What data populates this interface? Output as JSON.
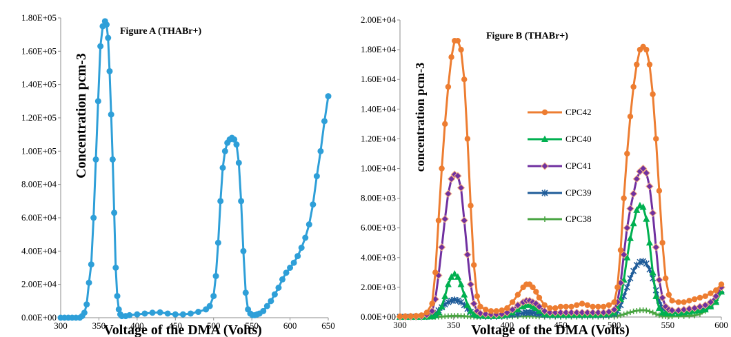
{
  "chart_data": [
    {
      "type": "line",
      "title": "Figure A (THABr+)",
      "xlabel": "Voltage of the DMA (Volts)",
      "ylabel": "Concentration pcm-3",
      "xlim": [
        300,
        650
      ],
      "ylim": [
        0,
        180000
      ],
      "x_ticks": [
        "300",
        "350",
        "400",
        "450",
        "500",
        "550",
        "600",
        "650"
      ],
      "y_ticks": [
        "0.00E+00",
        "2.00E+04",
        "4.00E+04",
        "6.00E+04",
        "8.00E+04",
        "1.00E+05",
        "1.20E+05",
        "1.40E+05",
        "1.60E+05",
        "1.80E+05"
      ],
      "grid": false,
      "legend": "none",
      "colors": {
        "series": "#2e9fd8"
      },
      "series": [
        {
          "x": [
            300,
            305,
            310,
            315,
            320,
            325,
            328,
            331,
            334,
            337,
            340,
            343,
            346,
            349,
            352,
            355,
            358,
            360,
            362,
            364,
            366,
            368,
            370,
            372,
            374,
            376,
            378,
            380,
            385,
            390,
            400,
            410,
            420,
            430,
            440,
            450,
            460,
            470,
            480,
            490,
            495,
            500,
            503,
            506,
            509,
            512,
            515,
            518,
            521,
            524,
            527,
            530,
            533,
            536,
            539,
            542,
            545,
            548,
            551,
            554,
            557,
            560,
            565,
            570,
            575,
            580,
            585,
            590,
            595,
            600,
            605,
            610,
            615,
            620,
            625,
            630,
            635,
            640,
            645,
            650
          ],
          "y": [
            0,
            0,
            0,
            0,
            0,
            0,
            1000,
            3000,
            8000,
            21000,
            32000,
            60000,
            95000,
            130000,
            163000,
            175000,
            178000,
            176000,
            168000,
            148000,
            122000,
            95000,
            63000,
            30000,
            13000,
            5000,
            2000,
            1000,
            1000,
            1500,
            2000,
            2500,
            3000,
            3200,
            2500,
            2000,
            2000,
            2500,
            3500,
            5000,
            7000,
            13000,
            25000,
            45000,
            70000,
            90000,
            100000,
            105000,
            107000,
            108000,
            107000,
            104000,
            93000,
            70000,
            40000,
            15000,
            5000,
            2500,
            1500,
            1500,
            2000,
            2500,
            4000,
            7000,
            10000,
            14000,
            18000,
            23000,
            27000,
            30000,
            33000,
            37000,
            42000,
            48000,
            56000,
            68000,
            85000,
            100000,
            118000,
            133000
          ]
        }
      ]
    },
    {
      "type": "line",
      "title": "Figure B  (THABr+)",
      "xlabel": "Voltage of the DMA (Volts)",
      "ylabel": "concentration pcm-3",
      "xlim": [
        300,
        600
      ],
      "ylim": [
        0,
        20000
      ],
      "x_ticks": [
        "300",
        "350",
        "400",
        "450",
        "500",
        "550",
        "600"
      ],
      "y_ticks": [
        "0.00E+00",
        "2.00E+03",
        "4.00E+03",
        "6.00E+03",
        "8.00E+03",
        "1.00E+04",
        "1.20E+04",
        "1.40E+04",
        "1.60E+04",
        "1.80E+04",
        "2.00E+04"
      ],
      "grid": false,
      "legend": "center",
      "x": [
        300,
        305,
        310,
        315,
        320,
        325,
        330,
        333,
        336,
        339,
        342,
        345,
        348,
        351,
        354,
        357,
        360,
        363,
        366,
        369,
        372,
        375,
        380,
        385,
        390,
        395,
        400,
        405,
        410,
        415,
        418,
        421,
        424,
        427,
        430,
        435,
        440,
        445,
        450,
        455,
        460,
        465,
        470,
        475,
        480,
        485,
        490,
        495,
        500,
        503,
        506,
        509,
        512,
        515,
        518,
        521,
        524,
        527,
        530,
        533,
        536,
        539,
        542,
        545,
        548,
        551,
        554,
        560,
        565,
        570,
        575,
        580,
        585,
        590,
        595,
        600
      ],
      "series": [
        {
          "name": "CPC42",
          "color": "#ed7d31",
          "marker": "circle",
          "values": [
            50,
            50,
            60,
            80,
            120,
            300,
            900,
            3000,
            6500,
            10000,
            13000,
            15500,
            17500,
            18600,
            18600,
            18000,
            16000,
            12000,
            7500,
            3500,
            1400,
            700,
            500,
            400,
            400,
            450,
            600,
            1000,
            1500,
            2000,
            2200,
            2200,
            2000,
            1700,
            1300,
            800,
            600,
            600,
            700,
            700,
            700,
            800,
            900,
            800,
            700,
            700,
            700,
            800,
            1000,
            2000,
            4500,
            8000,
            11000,
            13500,
            15500,
            17000,
            18000,
            18200,
            18000,
            17000,
            15000,
            12000,
            8500,
            5000,
            2600,
            1500,
            1100,
            1000,
            1000,
            1100,
            1200,
            1300,
            1400,
            1600,
            1800,
            2200
          ]
        },
        {
          "name": "CPC40",
          "color": "#00b050",
          "marker": "triangle",
          "values": [
            0,
            0,
            0,
            0,
            0,
            10,
            30,
            100,
            300,
            700,
            1400,
            2200,
            2700,
            2900,
            2700,
            2200,
            1500,
            800,
            400,
            200,
            100,
            80,
            60,
            60,
            60,
            80,
            150,
            300,
            500,
            700,
            800,
            800,
            700,
            600,
            400,
            200,
            150,
            150,
            150,
            150,
            150,
            150,
            150,
            150,
            150,
            150,
            200,
            200,
            300,
            600,
            1200,
            2500,
            4000,
            5300,
            6300,
            7200,
            7500,
            7400,
            6600,
            5000,
            3000,
            1400,
            600,
            300,
            250,
            250,
            250,
            250,
            300,
            350,
            400,
            450,
            500,
            700,
            1000,
            1700
          ]
        },
        {
          "name": "CPC41",
          "color": "#7030a0",
          "marker": "diamond",
          "values": [
            20,
            20,
            30,
            40,
            60,
            150,
            400,
            1200,
            2800,
            4700,
            6600,
            8300,
            9300,
            9600,
            9500,
            8700,
            6500,
            4200,
            2200,
            900,
            400,
            250,
            200,
            180,
            180,
            200,
            300,
            500,
            800,
            1000,
            1100,
            1100,
            1000,
            900,
            700,
            400,
            300,
            300,
            300,
            300,
            300,
            300,
            300,
            300,
            300,
            300,
            300,
            350,
            500,
            1000,
            2300,
            4200,
            6000,
            7300,
            8300,
            9300,
            9800,
            10000,
            9700,
            8800,
            7000,
            4700,
            2500,
            1300,
            700,
            500,
            450,
            450,
            500,
            550,
            600,
            700,
            800,
            1000,
            1400,
            2000
          ]
        },
        {
          "name": "CPC39",
          "color": "#1f5c99",
          "marker": "star",
          "values": [
            10,
            10,
            10,
            10,
            20,
            40,
            100,
            250,
            450,
            650,
            850,
            1000,
            1100,
            1150,
            1100,
            1000,
            800,
            550,
            350,
            200,
            120,
            80,
            60,
            60,
            60,
            70,
            100,
            150,
            200,
            260,
            300,
            300,
            280,
            240,
            200,
            150,
            120,
            120,
            120,
            120,
            120,
            120,
            120,
            120,
            120,
            120,
            130,
            150,
            200,
            400,
            800,
            1400,
            2000,
            2600,
            3100,
            3500,
            3700,
            3750,
            3600,
            3200,
            2600,
            1800,
            1100,
            600,
            400,
            300,
            300,
            300,
            350,
            400,
            450,
            500,
            600,
            800,
            1100,
            1800
          ]
        },
        {
          "name": "CPC38",
          "color": "#4aa543",
          "marker": "plus",
          "values": [
            0,
            0,
            0,
            0,
            0,
            0,
            0,
            10,
            20,
            30,
            40,
            60,
            70,
            80,
            80,
            70,
            60,
            40,
            30,
            20,
            10,
            10,
            10,
            10,
            10,
            10,
            20,
            30,
            40,
            50,
            60,
            60,
            50,
            40,
            30,
            20,
            20,
            20,
            20,
            20,
            20,
            20,
            20,
            20,
            20,
            20,
            20,
            30,
            40,
            80,
            120,
            180,
            250,
            320,
            380,
            420,
            450,
            460,
            440,
            380,
            300,
            200,
            120,
            70,
            50,
            40,
            40,
            50,
            60,
            80,
            100,
            200,
            400,
            700,
            1100,
            1700
          ]
        }
      ]
    }
  ]
}
